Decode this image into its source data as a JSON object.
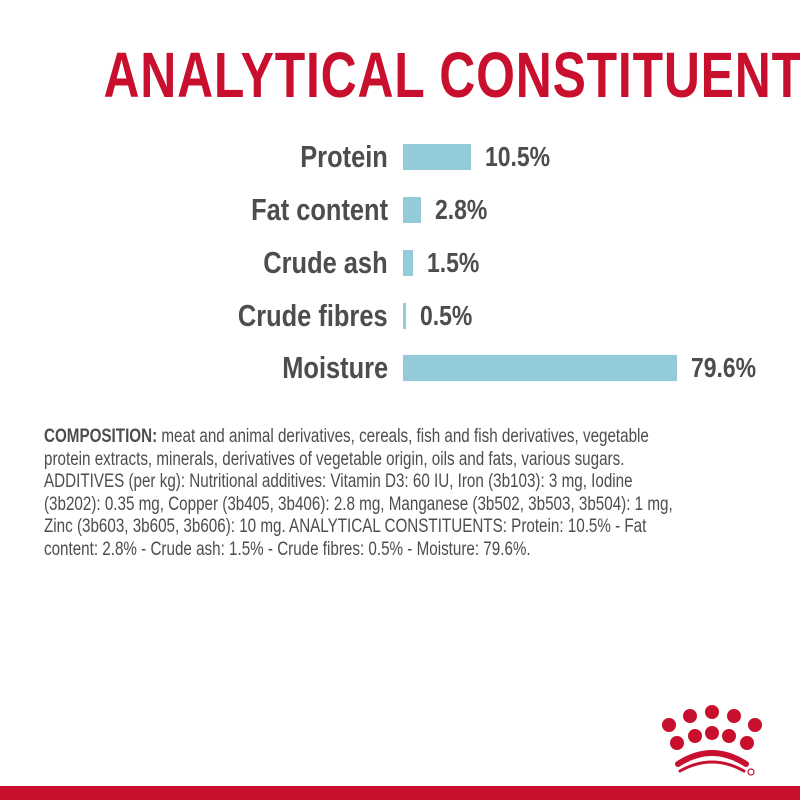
{
  "title": "ANALYTICAL CONSTITUENTS",
  "colors": {
    "brand_red": "#c8102e",
    "bar": "#93cbd9",
    "text": "#4d4d4f"
  },
  "constituents": [
    {
      "label": "Protein",
      "value": 10.5,
      "display": "10.5%"
    },
    {
      "label": "Fat content",
      "value": 2.8,
      "display": "2.8%"
    },
    {
      "label": "Crude ash",
      "value": 1.5,
      "display": "1.5%"
    },
    {
      "label": "Crude fibres",
      "value": 0.5,
      "display": "0.5%"
    },
    {
      "label": "Moisture",
      "value": 79.6,
      "display": "79.6%"
    }
  ],
  "composition": {
    "heading": "COMPOSITION:",
    "text": " meat and animal derivatives, cereals, fish and fish derivatives, vegetable\nprotein extracts, minerals, derivatives of vegetable origin, oils and fats, various sugars.\nADDITIVES (per kg): Nutritional additives: Vitamin D3: 60 IU, Iron (3b103): 3 mg, Iodine\n(3b202): 0.35 mg, Copper (3b405, 3b406): 2.8 mg, Manganese (3b502, 3b503, 3b504): 1 mg,\nZinc (3b603, 3b605, 3b606): 10 mg. ANALYTICAL CONSTITUENTS: Protein: 10.5% - Fat\ncontent: 2.8% - Crude ash: 1.5% - Crude fibres: 0.5% - Moisture: 79.6%."
  },
  "logo": {
    "icon": "royal-canin-crown-logo"
  }
}
